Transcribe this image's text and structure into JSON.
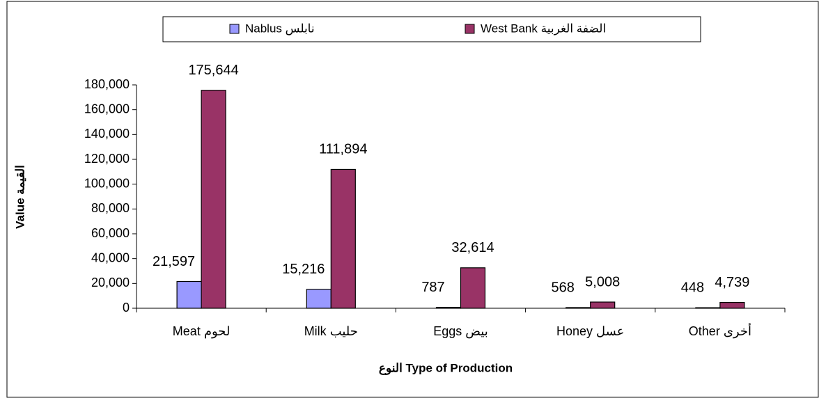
{
  "chart_data": {
    "type": "bar",
    "x_label": "النوع Type of Production",
    "y_label": "Value القيمة",
    "categories": [
      "Meat لحوم",
      "Milk حليب",
      "Eggs بيض",
      "Honey عسل",
      "Other أخرى"
    ],
    "series": [
      {
        "name": "Nablus  نابلس",
        "color": "#9999ff",
        "values": [
          21597,
          15216,
          787,
          568,
          448
        ],
        "value_labels": [
          "21,597",
          "15,216",
          "787",
          "568",
          "448"
        ]
      },
      {
        "name": "West Bank  الضفة الغربية",
        "color": "#993366",
        "values": [
          175644,
          111894,
          32614,
          5008,
          4739
        ],
        "value_labels": [
          "175,644",
          "111,894",
          "32,614",
          "5,008",
          "4,739"
        ]
      }
    ],
    "ylim": [
      0,
      180000
    ],
    "yticks": [
      0,
      {
        "value": 20000,
        "label": "20,000"
      },
      {
        "value": 40000,
        "label": "40,000"
      },
      {
        "value": 60000,
        "label": "60,000"
      },
      {
        "value": 80000,
        "label": "80,000"
      },
      {
        "value": 100000,
        "label": "100,000"
      },
      {
        "value": 120000,
        "label": "120,000"
      },
      {
        "value": 140000,
        "label": "140,000"
      },
      {
        "value": 160000,
        "label": "160,000"
      },
      {
        "value": 180000,
        "label": "180,000"
      }
    ],
    "legend": "top"
  }
}
